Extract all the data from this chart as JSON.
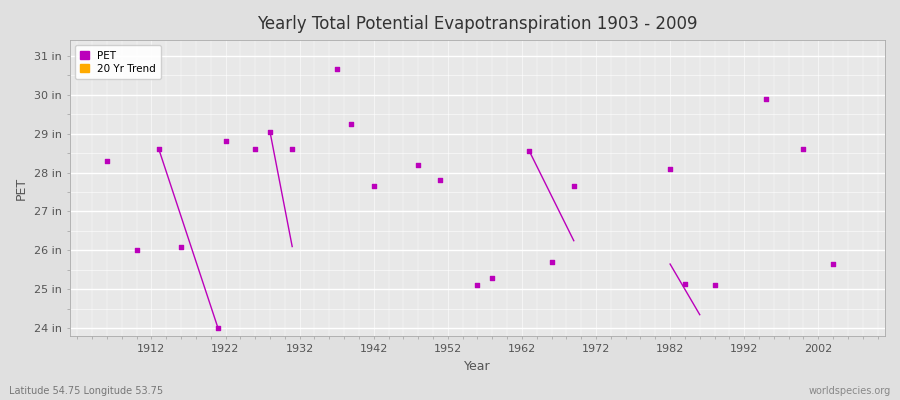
{
  "title": "Yearly Total Potential Evapotranspiration 1903 - 2009",
  "xlabel": "Year",
  "ylabel": "PET",
  "fig_bg_color": "#e0e0e0",
  "plot_bg_color": "#e8e8e8",
  "grid_color": "#ffffff",
  "grid_minor_color": "#d8d8d8",
  "pet_color": "#bb00bb",
  "trend_color": "#ffaa00",
  "ylim": [
    23.8,
    31.4
  ],
  "xlim": [
    1901,
    2011
  ],
  "yticks": [
    24,
    25,
    26,
    27,
    28,
    29,
    30,
    31
  ],
  "ytick_labels": [
    "24 in",
    "25 in",
    "26 in",
    "27 in",
    "28 in",
    "29 in",
    "30 in",
    "31 in"
  ],
  "xticks": [
    1912,
    1922,
    1932,
    1942,
    1952,
    1962,
    1972,
    1982,
    1992,
    2002
  ],
  "pet_data": [
    [
      1906,
      28.3
    ],
    [
      1910,
      26.0
    ],
    [
      1913,
      28.6
    ],
    [
      1916,
      26.1
    ],
    [
      1921,
      24.0
    ],
    [
      1922,
      28.8
    ],
    [
      1926,
      28.6
    ],
    [
      1928,
      29.05
    ],
    [
      1931,
      28.6
    ],
    [
      1937,
      30.65
    ],
    [
      1939,
      29.25
    ],
    [
      1942,
      27.65
    ],
    [
      1948,
      28.2
    ],
    [
      1951,
      27.8
    ],
    [
      1956,
      25.1
    ],
    [
      1958,
      25.3
    ],
    [
      1963,
      28.55
    ],
    [
      1966,
      25.7
    ],
    [
      1969,
      27.65
    ],
    [
      1982,
      28.1
    ],
    [
      1984,
      25.15
    ],
    [
      1988,
      25.1
    ],
    [
      1995,
      29.9
    ],
    [
      2000,
      28.6
    ],
    [
      2004,
      25.65
    ]
  ],
  "trend_segments": [
    [
      [
        1913,
        28.6
      ],
      [
        1921,
        24.0
      ]
    ],
    [
      [
        1928,
        29.05
      ],
      [
        1931,
        26.1
      ]
    ],
    [
      [
        1963,
        28.55
      ],
      [
        1969,
        26.25
      ]
    ],
    [
      [
        1982,
        25.65
      ],
      [
        1986,
        24.35
      ]
    ]
  ],
  "footer_left": "Latitude 54.75 Longitude 53.75",
  "footer_right": "worldspecies.org",
  "legend_entries": [
    "PET",
    "20 Yr Trend"
  ]
}
